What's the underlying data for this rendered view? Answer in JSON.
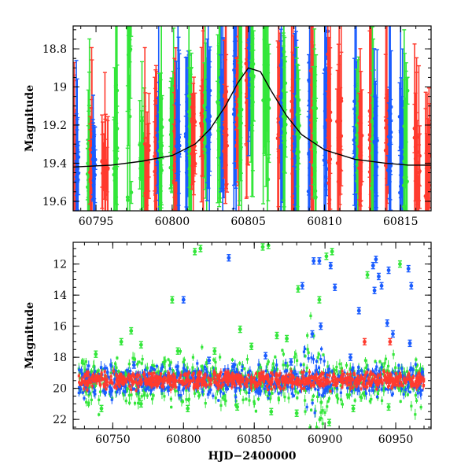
{
  "chart_data": [
    {
      "type": "scatter",
      "panel": "top",
      "title": "",
      "xlabel": "",
      "ylabel": "Magnitude",
      "xlim": [
        60793.5,
        60817
      ],
      "ylim": [
        19.65,
        18.68
      ],
      "y_inverted": true,
      "x_ticks": [
        60795,
        60800,
        60805,
        60810,
        60815
      ],
      "y_ticks": [
        18.8,
        19,
        19.2,
        19.4,
        19.6
      ],
      "model_curve": {
        "name": "model",
        "color": "#000000",
        "x": [
          60793.5,
          60796,
          60798,
          60800,
          60801.5,
          60802.5,
          60803.5,
          60804.3,
          60805,
          60805.8,
          60806.5,
          60807.5,
          60808.5,
          60810,
          60812,
          60814,
          60815.5,
          60817
        ],
        "y": [
          19.42,
          19.41,
          19.39,
          19.36,
          19.3,
          19.22,
          19.1,
          18.98,
          18.9,
          18.92,
          19.02,
          19.15,
          19.25,
          19.33,
          19.38,
          19.4,
          19.41,
          19.41
        ]
      },
      "clusters": [
        {
          "center": 60793.7,
          "width": 0.3,
          "mag": 19.45,
          "scatter": 0.06,
          "series": [
            "red",
            "blue"
          ]
        },
        {
          "center": 60794.7,
          "width": 0.5,
          "mag": 19.42,
          "scatter": 0.08,
          "series": [
            "green",
            "red",
            "blue"
          ]
        },
        {
          "center": 60795.6,
          "width": 0.4,
          "mag": 19.45,
          "scatter": 0.07,
          "series": [
            "red"
          ]
        },
        {
          "center": 60796.3,
          "width": 0.2,
          "mag": 19.2,
          "scatter": 0.25,
          "series": [
            "green"
          ]
        },
        {
          "center": 60797.2,
          "width": 0.3,
          "mag": 19.0,
          "scatter": 0.4,
          "series": [
            "green"
          ]
        },
        {
          "center": 60798.2,
          "width": 0.6,
          "mag": 19.42,
          "scatter": 0.08,
          "series": [
            "green",
            "red"
          ]
        },
        {
          "center": 60799.1,
          "width": 0.5,
          "mag": 19.35,
          "scatter": 0.1,
          "series": [
            "red",
            "blue",
            "green"
          ]
        },
        {
          "center": 60800.2,
          "width": 0.6,
          "mag": 19.3,
          "scatter": 0.1,
          "series": [
            "green",
            "red",
            "blue"
          ]
        },
        {
          "center": 60801.2,
          "width": 0.6,
          "mag": 19.25,
          "scatter": 0.1,
          "series": [
            "blue",
            "green",
            "red"
          ]
        },
        {
          "center": 60802.2,
          "width": 0.6,
          "mag": 19.18,
          "scatter": 0.1,
          "series": [
            "red",
            "green",
            "blue"
          ]
        },
        {
          "center": 60803.3,
          "width": 0.6,
          "mag": 19.12,
          "scatter": 0.12,
          "series": [
            "green",
            "blue",
            "red"
          ]
        },
        {
          "center": 60804.3,
          "width": 0.5,
          "mag": 19.0,
          "scatter": 0.12,
          "series": [
            "blue",
            "red",
            "green"
          ]
        },
        {
          "center": 60805.1,
          "width": 0.5,
          "mag": 18.9,
          "scatter": 0.1,
          "series": [
            "red",
            "blue",
            "green"
          ]
        },
        {
          "center": 60806.2,
          "width": 0.4,
          "mag": 19.0,
          "scatter": 0.25,
          "series": [
            "green"
          ]
        },
        {
          "center": 60807.2,
          "width": 0.5,
          "mag": 19.15,
          "scatter": 0.15,
          "series": [
            "red",
            "blue",
            "green"
          ]
        },
        {
          "center": 60808.1,
          "width": 0.5,
          "mag": 19.22,
          "scatter": 0.12,
          "series": [
            "red",
            "blue",
            "green"
          ]
        },
        {
          "center": 60809.2,
          "width": 0.5,
          "mag": 19.25,
          "scatter": 0.15,
          "series": [
            "blue",
            "red",
            "green"
          ]
        },
        {
          "center": 60810.2,
          "width": 0.4,
          "mag": 19.2,
          "scatter": 0.2,
          "series": [
            "blue",
            "red"
          ]
        },
        {
          "center": 60811.0,
          "width": 0.3,
          "mag": 19.3,
          "scatter": 0.15,
          "series": [
            "red"
          ]
        },
        {
          "center": 60812.2,
          "width": 0.5,
          "mag": 19.3,
          "scatter": 0.12,
          "series": [
            "blue",
            "green",
            "red"
          ]
        },
        {
          "center": 60813.2,
          "width": 0.5,
          "mag": 19.3,
          "scatter": 0.15,
          "series": [
            "red",
            "green",
            "blue"
          ]
        },
        {
          "center": 60814.2,
          "width": 0.4,
          "mag": 19.3,
          "scatter": 0.12,
          "series": [
            "red",
            "blue"
          ]
        },
        {
          "center": 60815.2,
          "width": 0.5,
          "mag": 19.32,
          "scatter": 0.15,
          "series": [
            "blue",
            "green"
          ]
        },
        {
          "center": 60816.1,
          "width": 0.4,
          "mag": 19.4,
          "scatter": 0.1,
          "series": [
            "red"
          ]
        },
        {
          "center": 60816.8,
          "width": 0.3,
          "mag": 19.45,
          "scatter": 0.1,
          "series": [
            "red"
          ]
        }
      ]
    },
    {
      "type": "scatter",
      "panel": "bottom",
      "title": "",
      "xlabel": "HJD−2400000",
      "ylabel": "Magnitude",
      "xlim": [
        60722,
        60975
      ],
      "ylim": [
        22.6,
        10.6
      ],
      "y_inverted": true,
      "x_ticks": [
        60750,
        60800,
        60850,
        60900,
        60950
      ],
      "y_ticks": [
        12,
        14,
        16,
        18,
        20,
        22
      ],
      "band_center_mag": 19.5,
      "outliers": [
        {
          "x": 60808,
          "y": 11.2,
          "series": "green"
        },
        {
          "x": 60812,
          "y": 11.0,
          "series": "green"
        },
        {
          "x": 60832,
          "y": 11.6,
          "series": "blue"
        },
        {
          "x": 60856,
          "y": 10.9,
          "series": "green"
        },
        {
          "x": 60860,
          "y": 10.8,
          "series": "green"
        },
        {
          "x": 60792,
          "y": 14.3,
          "series": "green"
        },
        {
          "x": 60800,
          "y": 14.3,
          "series": "blue"
        },
        {
          "x": 60881,
          "y": 13.6,
          "series": "green"
        },
        {
          "x": 60884,
          "y": 13.4,
          "series": "blue"
        },
        {
          "x": 60892,
          "y": 11.8,
          "series": "blue"
        },
        {
          "x": 60896,
          "y": 11.8,
          "series": "blue"
        },
        {
          "x": 60901,
          "y": 11.5,
          "series": "green"
        },
        {
          "x": 60905,
          "y": 11.2,
          "series": "green"
        },
        {
          "x": 60904,
          "y": 12.1,
          "series": "blue"
        },
        {
          "x": 60896,
          "y": 14.3,
          "series": "green"
        },
        {
          "x": 60907,
          "y": 13.5,
          "series": "blue"
        },
        {
          "x": 60930,
          "y": 12.7,
          "series": "green"
        },
        {
          "x": 60934,
          "y": 12.1,
          "series": "blue"
        },
        {
          "x": 60936,
          "y": 11.7,
          "series": "blue"
        },
        {
          "x": 60938,
          "y": 12.8,
          "series": "blue"
        },
        {
          "x": 60935,
          "y": 13.7,
          "series": "blue"
        },
        {
          "x": 60940,
          "y": 13.4,
          "series": "blue"
        },
        {
          "x": 60945,
          "y": 12.4,
          "series": "blue"
        },
        {
          "x": 60953,
          "y": 12.0,
          "series": "green"
        },
        {
          "x": 60959,
          "y": 12.3,
          "series": "blue"
        },
        {
          "x": 60961,
          "y": 13.4,
          "series": "blue"
        },
        {
          "x": 60944,
          "y": 15.8,
          "series": "blue"
        },
        {
          "x": 60948,
          "y": 16.5,
          "series": "blue"
        },
        {
          "x": 60960,
          "y": 17.1,
          "series": "blue"
        },
        {
          "x": 60928,
          "y": 17.0,
          "series": "red"
        },
        {
          "x": 60946,
          "y": 17.0,
          "series": "red"
        },
        {
          "x": 60924,
          "y": 15.0,
          "series": "blue"
        },
        {
          "x": 60897,
          "y": 16.0,
          "series": "blue"
        },
        {
          "x": 60891,
          "y": 16.5,
          "series": "blue"
        },
        {
          "x": 60763,
          "y": 16.3,
          "series": "green"
        },
        {
          "x": 60756,
          "y": 17.0,
          "series": "green"
        },
        {
          "x": 60770,
          "y": 17.2,
          "series": "green"
        },
        {
          "x": 60840,
          "y": 16.2,
          "series": "green"
        },
        {
          "x": 60866,
          "y": 16.6,
          "series": "green"
        },
        {
          "x": 60873,
          "y": 16.8,
          "series": "green"
        },
        {
          "x": 60738,
          "y": 17.8,
          "series": "green"
        },
        {
          "x": 60796,
          "y": 17.6,
          "series": "green"
        },
        {
          "x": 60822,
          "y": 17.6,
          "series": "green"
        },
        {
          "x": 60848,
          "y": 17.3,
          "series": "green"
        },
        {
          "x": 60765,
          "y": 18.5,
          "series": "blue"
        },
        {
          "x": 60818,
          "y": 18.2,
          "series": "blue"
        },
        {
          "x": 60835,
          "y": 18.6,
          "series": "blue"
        },
        {
          "x": 60858,
          "y": 17.9,
          "series": "blue"
        },
        {
          "x": 60876,
          "y": 18.3,
          "series": "blue"
        },
        {
          "x": 60918,
          "y": 18.0,
          "series": "blue"
        },
        {
          "x": 60742,
          "y": 21.3,
          "series": "green"
        },
        {
          "x": 60770,
          "y": 21.0,
          "series": "green"
        },
        {
          "x": 60803,
          "y": 21.3,
          "series": "green"
        },
        {
          "x": 60838,
          "y": 21.2,
          "series": "green"
        },
        {
          "x": 60862,
          "y": 21.5,
          "series": "green"
        },
        {
          "x": 60880,
          "y": 21.6,
          "series": "green"
        },
        {
          "x": 60903,
          "y": 22.2,
          "series": "green"
        },
        {
          "x": 60920,
          "y": 21.3,
          "series": "green"
        },
        {
          "x": 60945,
          "y": 21.2,
          "series": "green"
        }
      ]
    }
  ],
  "series_colors": {
    "red": "#ff3b2f",
    "green": "#33e63a",
    "blue": "#1a5cff",
    "model": "#000000"
  }
}
